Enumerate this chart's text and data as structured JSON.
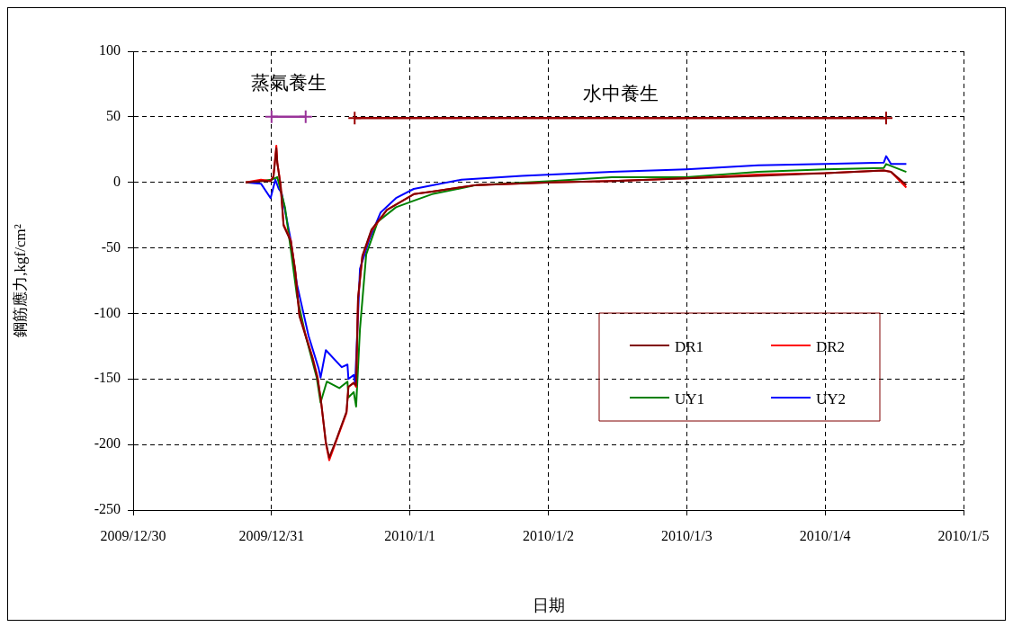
{
  "chart_data": {
    "type": "line",
    "xlabel": "日期",
    "ylabel": "鋼筋應力,kgf/cm²",
    "xlim": [
      "2009-12-30",
      "2010-01-05"
    ],
    "xticks": [
      {
        "value": "2009-12-30",
        "label": "2009/12/30"
      },
      {
        "value": "2009-12-31",
        "label": "2009/12/31"
      },
      {
        "value": "2010-01-01",
        "label": "2010/1/1"
      },
      {
        "value": "2010-01-02",
        "label": "2010/1/2"
      },
      {
        "value": "2010-01-03",
        "label": "2010/1/3"
      },
      {
        "value": "2010-01-04",
        "label": "2010/1/4"
      },
      {
        "value": "2010-01-05",
        "label": "2010/1/5"
      }
    ],
    "ylim": [
      -250,
      100
    ],
    "yticks": [
      -250,
      -200,
      -150,
      -100,
      -50,
      0,
      50,
      100
    ],
    "grid": true,
    "legend": "bottom right",
    "marker": "none",
    "line_style": "solid",
    "annotations": [
      "蒸氣養生",
      "水中養生"
    ],
    "series": [
      {
        "name": "DR1",
        "color": "#800000",
        "x": [
          "2009-12-30T19:30",
          "2009-12-30T22:10",
          "2009-12-30T23:50",
          "2009-12-31T00:20",
          "2009-12-31T00:50",
          "2009-12-31T01:00",
          "2009-12-31T01:35",
          "2009-12-31T02:05",
          "2009-12-31T03:20",
          "2009-12-31T04:05",
          "2009-12-31T04:50",
          "2009-12-31T07:05",
          "2009-12-31T08:00",
          "2009-12-31T08:35",
          "2009-12-31T09:25",
          "2009-12-31T10:00",
          "2009-12-31T11:05",
          "2009-12-31T13:00",
          "2009-12-31T13:20",
          "2009-12-31T14:15",
          "2009-12-31T14:40",
          "2009-12-31T15:00",
          "2009-12-31T15:45",
          "2009-12-31T17:20",
          "2009-12-31T20:00",
          "2010-01-01T00:40",
          "2010-01-01T03:50",
          "2010-01-01T11:35",
          "2010-01-02T00:35",
          "2010-01-02T11:00",
          "2010-01-02T23:55",
          "2010-01-03T12:25",
          "2010-01-04T00:00",
          "2010-01-04T10:10",
          "2010-01-04T11:25",
          "2010-01-04T14:05"
        ],
        "values": [
          0,
          1,
          1,
          4,
          26,
          15,
          -3,
          -33,
          -45,
          -67,
          -102,
          -134,
          -150,
          -167,
          -198,
          -210,
          -198,
          -175,
          -156,
          -153,
          -155,
          -88,
          -56,
          -36,
          -21,
          -9,
          -7,
          -2,
          0,
          1,
          3,
          5,
          7,
          9,
          8,
          -2
        ]
      },
      {
        "name": "DR2",
        "color": "#ff0000",
        "x": [
          "2009-12-30T19:30",
          "2009-12-30T22:10",
          "2009-12-30T23:50",
          "2009-12-31T00:20",
          "2009-12-31T00:50",
          "2009-12-31T01:00",
          "2009-12-31T01:35",
          "2009-12-31T02:05",
          "2009-12-31T03:20",
          "2009-12-31T04:05",
          "2009-12-31T04:50",
          "2009-12-31T07:05",
          "2009-12-31T08:00",
          "2009-12-31T08:35",
          "2009-12-31T09:25",
          "2009-12-31T10:00",
          "2009-12-31T11:05",
          "2009-12-31T13:00",
          "2009-12-31T13:20",
          "2009-12-31T14:15",
          "2009-12-31T14:40",
          "2009-12-31T15:00",
          "2009-12-31T15:45",
          "2009-12-31T17:20",
          "2009-12-31T20:00",
          "2010-01-01T00:40",
          "2010-01-01T03:50",
          "2010-01-01T11:35",
          "2010-01-02T00:35",
          "2010-01-02T11:00",
          "2010-01-02T23:55",
          "2010-01-03T12:25",
          "2010-01-04T00:00",
          "2010-01-04T10:10",
          "2010-01-04T11:25",
          "2010-01-04T14:05"
        ],
        "values": [
          0,
          2,
          1,
          5,
          28,
          15,
          -2,
          -32,
          -44,
          -66,
          -101,
          -133,
          -149,
          -167,
          -199,
          -212,
          -199,
          -176,
          -156,
          -153,
          -156,
          -89,
          -57,
          -37,
          -21,
          -9,
          -7,
          -2,
          0,
          1,
          3,
          6,
          7,
          9,
          8,
          -4
        ]
      },
      {
        "name": "UY1",
        "color": "#008000",
        "x": [
          "2009-12-30T19:30",
          "2009-12-30T22:10",
          "2009-12-31T00:00",
          "2009-12-31T01:00",
          "2009-12-31T02:20",
          "2009-12-31T03:20",
          "2009-12-31T04:25",
          "2009-12-31T05:55",
          "2009-12-31T07:50",
          "2009-12-31T08:30",
          "2009-12-31T09:35",
          "2009-12-31T11:45",
          "2009-12-31T13:10",
          "2009-12-31T13:20",
          "2009-12-31T14:15",
          "2009-12-31T14:40",
          "2009-12-31T15:20",
          "2009-12-31T16:25",
          "2009-12-31T18:25",
          "2009-12-31T21:35",
          "2010-01-01T00:40",
          "2010-01-01T03:50",
          "2010-01-01T11:35",
          "2010-01-02T00:35",
          "2010-01-02T11:00",
          "2010-01-02T23:55",
          "2010-01-03T12:25",
          "2010-01-04T00:00",
          "2010-01-04T10:10",
          "2010-01-04T10:35",
          "2010-01-04T14:05"
        ],
        "values": [
          0,
          1,
          2,
          4,
          -19,
          -51,
          -87,
          -117,
          -149,
          -168,
          -152,
          -157,
          -152,
          -164,
          -160,
          -171,
          -112,
          -55,
          -30,
          -19,
          -14,
          -9,
          -2,
          1,
          4,
          4,
          8,
          10,
          11,
          14,
          8
        ]
      },
      {
        "name": "UY2",
        "color": "#0000ff",
        "x": [
          "2009-12-30T19:30",
          "2009-12-30T22:10",
          "2009-12-30T23:50",
          "2009-12-31T00:40",
          "2009-12-31T01:15",
          "2009-12-31T01:45",
          "2009-12-31T03:20",
          "2009-12-31T04:25",
          "2009-12-31T06:25",
          "2009-12-31T08:10",
          "2009-12-31T08:30",
          "2009-12-31T09:25",
          "2009-12-31T12:10",
          "2009-12-31T13:10",
          "2009-12-31T13:20",
          "2009-12-31T14:15",
          "2009-12-31T14:30",
          "2009-12-31T15:20",
          "2009-12-31T16:55",
          "2009-12-31T18:55",
          "2009-12-31T21:35",
          "2010-01-01T00:40",
          "2010-01-01T08:55",
          "2010-01-01T19:25",
          "2010-01-02T11:00",
          "2010-01-02T23:55",
          "2010-01-03T12:25",
          "2010-01-04T00:00",
          "2010-01-04T10:10",
          "2010-01-04T10:35",
          "2010-01-04T11:25",
          "2010-01-04T14:05"
        ],
        "values": [
          0,
          -1,
          -12,
          2,
          -5,
          -8,
          -44,
          -78,
          -117,
          -142,
          -149,
          -128,
          -141,
          -139,
          -150,
          -147,
          -153,
          -66,
          -44,
          -23,
          -12,
          -5,
          2,
          5,
          8,
          10,
          13,
          14,
          15,
          20,
          14,
          14
        ]
      },
      {
        "type": "line",
        "color": "#993399",
        "marker": "cross",
        "x": [
          "2009-12-31T00:00",
          "2009-12-31T05:55"
        ],
        "values": [
          50,
          50
        ]
      },
      {
        "type": "line",
        "color": "#990000",
        "marker": "cross",
        "x": [
          "2009-12-31T14:25",
          "2010-01-04T10:35"
        ],
        "values": [
          49,
          49
        ]
      }
    ]
  }
}
